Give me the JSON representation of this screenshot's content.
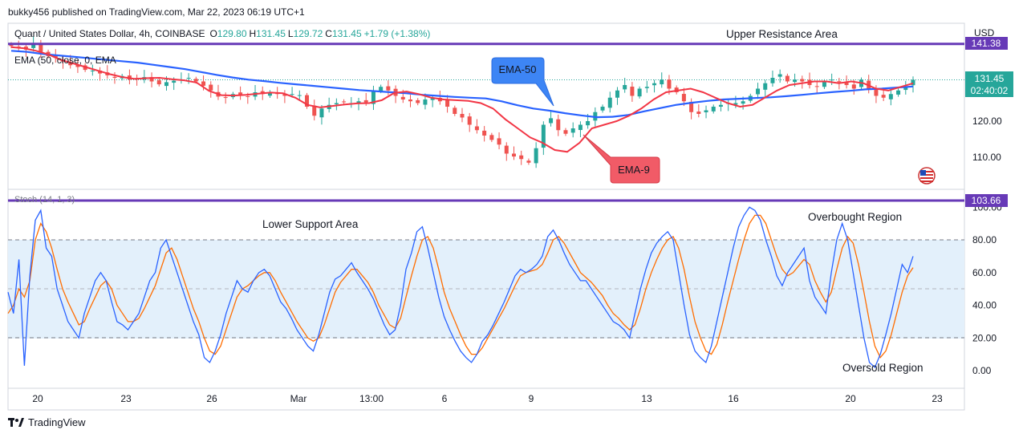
{
  "publisher": "bukky456 published on TradingView.com, Mar 22, 2023 06:19 UTC+1",
  "footer": {
    "brand": "TradingView",
    "logo_icon": "tradingview-logo-icon"
  },
  "colors": {
    "up": "#26a69a",
    "down": "#ef5350",
    "ema50": "#2962ff",
    "ema9": "#f23645",
    "resistance": "#673ab7",
    "stoch_k": "#2962ff",
    "stoch_d": "#ff6d00",
    "stoch_band": "#e3f0fb",
    "last_price": "#26a69a"
  },
  "legend": {
    "symbol": "Quant / United States Dollar, 4h, COINBASE",
    "o_label": "O",
    "o": "129.80",
    "h_label": "H",
    "h": "131.45",
    "l_label": "L",
    "l": "129.72",
    "c_label": "C",
    "c": "131.45",
    "change": "+1.79 (+1.38%)",
    "ema_label": "EMA (50, close, 0, EMA",
    "stoch_label": "Stoch (14, 1, 3)"
  },
  "annotations": {
    "upper": "Upper Resistance Area",
    "lower": "Lower Support Area",
    "overbought": "Overbought Region",
    "oversold": "Oversold Region",
    "ema50_callout": "EMA-50",
    "ema9_callout": "EMA-9"
  },
  "price_axis": {
    "currency": "USD",
    "ticks": [
      "110.00",
      "120.00"
    ],
    "resistance_label": "141.38",
    "last_price": "131.45",
    "countdown": "02:40:02"
  },
  "stoch_axis": {
    "ticks": [
      "0.00",
      "20.00",
      "40.00",
      "60.00",
      "80.00",
      "100.00"
    ],
    "marker": "103.66"
  },
  "time_axis": [
    "20",
    "23",
    "26",
    "Mar",
    "13:00",
    "6",
    "9",
    "13",
    "16",
    "20",
    "23"
  ],
  "chart_data": {
    "type": "candlestick",
    "title": "Quant / United States Dollar, 4h, COINBASE",
    "price_range": [
      103,
      145
    ],
    "resistance_level": 141.38,
    "ohlc_last": {
      "open": 129.8,
      "high": 131.45,
      "low": 129.72,
      "close": 131.45
    },
    "closes": [
      140.8,
      140.5,
      139.8,
      141.5,
      139.2,
      138.0,
      137.5,
      136.5,
      135.5,
      135.0,
      134.2,
      134.0,
      133.2,
      132.7,
      132.0,
      132.5,
      131.5,
      131.8,
      132.2,
      131.0,
      130.2,
      130.8,
      131.2,
      131.5,
      132.0,
      131.0,
      129.8,
      128.5,
      126.8,
      126.5,
      127.5,
      127.2,
      126.8,
      128.0,
      127.5,
      128.0,
      127.5,
      127.0,
      127.5,
      127.2,
      124.0,
      121.5,
      123.5,
      124.5,
      125.0,
      125.3,
      125.0,
      125.5,
      125.2,
      128.5,
      129.5,
      128.5,
      127.0,
      126.0,
      125.5,
      125.0,
      126.0,
      126.3,
      125.5,
      124.0,
      122.0,
      121.0,
      119.0,
      117.5,
      116.0,
      114.8,
      113.5,
      111.0,
      110.2,
      109.5,
      108.5,
      112.5,
      119.0,
      120.8,
      117.5,
      116.5,
      118.0,
      119.0,
      120.0,
      122.5,
      124.0,
      126.5,
      128.5,
      130.0,
      127.0,
      129.0,
      129.5,
      130.5,
      131.5,
      129.0,
      128.0,
      125.5,
      122.5,
      122.0,
      123.0,
      124.0,
      124.5,
      125.0,
      125.0,
      125.5,
      127.0,
      129.0,
      130.5,
      132.0,
      133.0,
      131.0,
      131.5,
      131.0,
      130.0,
      129.5,
      131.0,
      131.5,
      130.8,
      130.0,
      129.0,
      131.5,
      129.0,
      127.0,
      126.5,
      127.5,
      128.5,
      129.5,
      131.45
    ],
    "series": [
      {
        "name": "EMA-50",
        "values": [
          139.5,
          139.2,
          138.6,
          138.2,
          137.8,
          137.4,
          137.0,
          136.6,
          136.2,
          135.6,
          135.0,
          134.4,
          133.6,
          132.8,
          132.1,
          131.5,
          131.1,
          130.6,
          130.2,
          129.8,
          129.4,
          129.0,
          128.6,
          128.3,
          128.0,
          127.7,
          127.3,
          127.0,
          126.7,
          126.5,
          126.3,
          125.5,
          124.4,
          123.5,
          122.9,
          122.2,
          121.6,
          121.1,
          121.2,
          121.7,
          122.7,
          123.6,
          124.5,
          125.1,
          125.6,
          126.0,
          126.2,
          126.4,
          126.6,
          126.9,
          127.3,
          127.7,
          128.1,
          128.4,
          128.8,
          129.0,
          129.3,
          129.6
        ]
      },
      {
        "name": "EMA-9",
        "values": [
          140.5,
          140.2,
          139.5,
          138.5,
          137.0,
          136.0,
          135.0,
          134.0,
          133.0,
          132.2,
          131.7,
          131.9,
          132.0,
          131.6,
          131.3,
          130.7,
          128.4,
          127.2,
          127.1,
          127.3,
          127.6,
          127.9,
          127.7,
          126.5,
          124.5,
          123.8,
          124.2,
          124.6,
          124.9,
          125.0,
          125.8,
          127.8,
          128.2,
          127.5,
          126.5,
          126.0,
          125.8,
          125.6,
          125.0,
          123.5,
          120.5,
          118.0,
          115.5,
          114.0,
          112.0,
          111.5,
          114.0,
          118.0,
          119.0,
          120.0,
          121.5,
          123.5,
          126.0,
          128.0,
          128.5,
          129.0,
          128.0,
          126.5,
          125.0,
          124.0,
          124.5,
          126.5,
          128.5,
          130.0,
          130.5,
          131.0,
          131.0,
          130.5,
          131.0,
          130.5,
          129.0,
          128.5,
          129.5,
          130.5
        ]
      }
    ],
    "stochastic": {
      "k": [
        48,
        35,
        68,
        3,
        58,
        92,
        98,
        75,
        70,
        50,
        40,
        30,
        25,
        20,
        35,
        45,
        55,
        60,
        55,
        42,
        30,
        28,
        25,
        30,
        35,
        45,
        55,
        60,
        75,
        80,
        70,
        60,
        50,
        40,
        30,
        22,
        8,
        5,
        12,
        22,
        35,
        45,
        55,
        50,
        48,
        55,
        60,
        62,
        58,
        50,
        42,
        38,
        32,
        25,
        20,
        15,
        12,
        22,
        35,
        48,
        56,
        58,
        62,
        66,
        60,
        55,
        50,
        44,
        36,
        28,
        22,
        25,
        40,
        62,
        72,
        85,
        88,
        75,
        60,
        45,
        33,
        25,
        18,
        12,
        8,
        5,
        10,
        18,
        22,
        28,
        35,
        42,
        50,
        58,
        62,
        60,
        62,
        65,
        70,
        82,
        86,
        80,
        72,
        65,
        60,
        55,
        55,
        50,
        45,
        40,
        35,
        30,
        28,
        25,
        20,
        35,
        50,
        62,
        72,
        78,
        82,
        85,
        80,
        60,
        40,
        22,
        12,
        8,
        5,
        15,
        30,
        45,
        60,
        75,
        88,
        95,
        100,
        98,
        92,
        80,
        70,
        58,
        52,
        60,
        65,
        70,
        75,
        55,
        45,
        40,
        35,
        60,
        80,
        90,
        80,
        60,
        40,
        20,
        5,
        2,
        10,
        22,
        35,
        50,
        65,
        60,
        70
      ],
      "d": [
        35,
        40,
        50,
        45,
        55,
        80,
        90,
        85,
        75,
        62,
        50,
        42,
        35,
        28,
        30,
        38,
        45,
        52,
        55,
        50,
        40,
        35,
        30,
        30,
        32,
        38,
        45,
        52,
        62,
        72,
        75,
        68,
        58,
        48,
        38,
        30,
        20,
        12,
        10,
        15,
        25,
        35,
        45,
        50,
        52,
        55,
        58,
        60,
        60,
        55,
        48,
        42,
        36,
        30,
        25,
        20,
        18,
        20,
        28,
        38,
        48,
        54,
        58,
        62,
        62,
        58,
        54,
        48,
        40,
        34,
        28,
        26,
        32,
        45,
        58,
        70,
        80,
        82,
        75,
        62,
        48,
        38,
        30,
        22,
        15,
        10,
        10,
        14,
        20,
        26,
        32,
        38,
        45,
        52,
        58,
        60,
        61,
        62,
        65,
        72,
        80,
        82,
        78,
        72,
        66,
        60,
        57,
        54,
        50,
        46,
        40,
        35,
        32,
        28,
        25,
        28,
        38,
        50,
        60,
        68,
        75,
        80,
        82,
        75,
        62,
        45,
        30,
        20,
        12,
        10,
        16,
        28,
        42,
        55,
        68,
        80,
        90,
        95,
        95,
        90,
        80,
        70,
        62,
        58,
        60,
        64,
        68,
        65,
        55,
        48,
        42,
        48,
        62,
        75,
        82,
        78,
        65,
        48,
        30,
        15,
        8,
        12,
        22,
        35,
        48,
        58,
        63
      ]
    }
  }
}
